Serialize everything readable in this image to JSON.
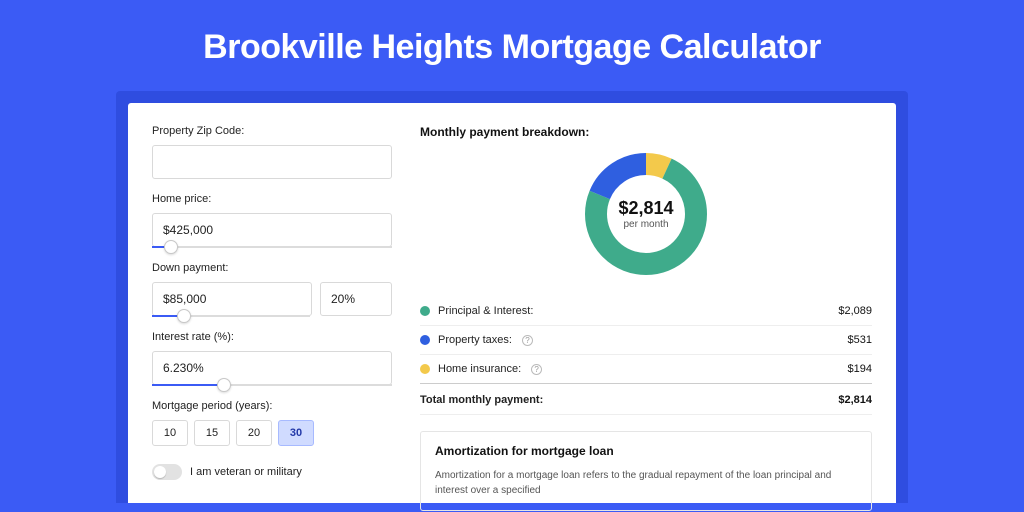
{
  "page": {
    "title": "Brookville Heights Mortgage Calculator",
    "background_color": "#3b5bf5",
    "shadow_color": "#2f4de0",
    "panel_color": "#ffffff"
  },
  "form": {
    "zip": {
      "label": "Property Zip Code:",
      "value": ""
    },
    "home_price": {
      "label": "Home price:",
      "value": "$425,000",
      "slider_pct": 8
    },
    "down_payment": {
      "label": "Down payment:",
      "value": "$85,000",
      "pct_value": "20%",
      "slider_pct": 20
    },
    "interest": {
      "label": "Interest rate (%):",
      "value": "6.230%",
      "slider_pct": 30
    },
    "period": {
      "label": "Mortgage period (years):",
      "options": [
        "10",
        "15",
        "20",
        "30"
      ],
      "selected": "30"
    },
    "veteran": {
      "label": "I am veteran or military",
      "checked": false
    }
  },
  "breakdown": {
    "title": "Monthly payment breakdown:",
    "center_amount": "$2,814",
    "center_sub": "per month",
    "donut": {
      "radius": 50,
      "stroke_width": 22,
      "track_color": "#f0f0f0",
      "slices": [
        {
          "name": "home_insurance",
          "color": "#f3c94b",
          "pct": 6.9
        },
        {
          "name": "principal_interest",
          "color": "#3fab8b",
          "pct": 74.2
        },
        {
          "name": "property_taxes",
          "color": "#2f5fe0",
          "pct": 18.9
        }
      ]
    },
    "items": [
      {
        "label": "Principal & Interest:",
        "value": "$2,089",
        "color": "#3fab8b",
        "info": false
      },
      {
        "label": "Property taxes:",
        "value": "$531",
        "color": "#2f5fe0",
        "info": true
      },
      {
        "label": "Home insurance:",
        "value": "$194",
        "color": "#f3c94b",
        "info": true
      }
    ],
    "total": {
      "label": "Total monthly payment:",
      "value": "$2,814"
    }
  },
  "amortization": {
    "title": "Amortization for mortgage loan",
    "body": "Amortization for a mortgage loan refers to the gradual repayment of the loan principal and interest over a specified"
  }
}
